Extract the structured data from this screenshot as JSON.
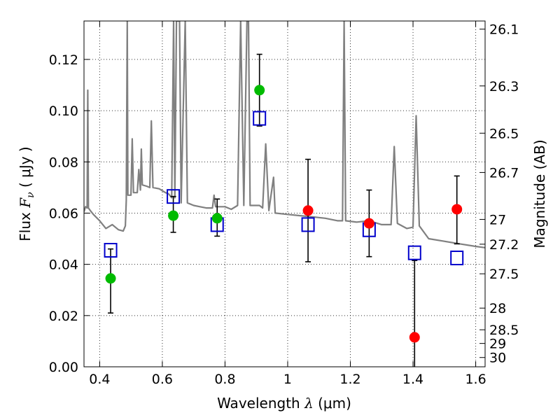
{
  "chart_data": {
    "type": "scatter",
    "xlabel": {
      "prefix": "Wavelength  ",
      "symbol": "λ",
      "unit": " (μm)"
    },
    "ylabel": {
      "prefix": "Flux  ",
      "symbol": "F",
      "subscript": "ν",
      "unit": "  ( μJy )"
    },
    "y2label": "Magnitude (AB)",
    "xlim": [
      0.35,
      1.63
    ],
    "ylim": [
      0.0,
      0.135
    ],
    "grid": true,
    "x_ticks": [
      0.4,
      0.6,
      0.8,
      1.0,
      1.2,
      1.4,
      1.6
    ],
    "x_tick_labels": [
      "0.4",
      "0.6",
      "0.8",
      "1",
      "1.2",
      "1.4",
      "1.6"
    ],
    "y_ticks": [
      0.0,
      0.02,
      0.04,
      0.06,
      0.08,
      0.1,
      0.12
    ],
    "y_tick_labels": [
      "0.00",
      "0.02",
      "0.04",
      "0.06",
      "0.08",
      "0.10",
      "0.12"
    ],
    "mag_ticks": [
      26.1,
      26.3,
      26.5,
      26.7,
      27,
      27.2,
      27.5,
      28,
      28.5,
      29,
      30
    ],
    "mag_tick_labels": [
      "26.1",
      "26.3",
      "26.5",
      "26.7",
      "27",
      "27.2",
      "27.5",
      "28",
      "28.5",
      "29",
      "30"
    ],
    "colors": {
      "spectrum": "#808080",
      "model": "#0000cc",
      "optical": "#00bb00",
      "nir": "#ff0000",
      "errorbar": "#000000",
      "grid": "#000000"
    },
    "series": [
      {
        "kind": "spectrum",
        "color": "#808080",
        "points": [
          [
            0.35,
            0.0605
          ],
          [
            0.355,
            0.0625
          ],
          [
            0.36,
            0.062
          ],
          [
            0.362,
            0.108
          ],
          [
            0.364,
            0.062
          ],
          [
            0.37,
            0.061
          ],
          [
            0.38,
            0.0595
          ],
          [
            0.4,
            0.057
          ],
          [
            0.42,
            0.054
          ],
          [
            0.44,
            0.0555
          ],
          [
            0.46,
            0.0535
          ],
          [
            0.475,
            0.053
          ],
          [
            0.482,
            0.055
          ],
          [
            0.485,
            0.065
          ],
          [
            0.488,
            0.135
          ],
          [
            0.49,
            0.067
          ],
          [
            0.5,
            0.067
          ],
          [
            0.504,
            0.089
          ],
          [
            0.508,
            0.068
          ],
          [
            0.52,
            0.068
          ],
          [
            0.525,
            0.077
          ],
          [
            0.53,
            0.069
          ],
          [
            0.533,
            0.085
          ],
          [
            0.536,
            0.071
          ],
          [
            0.55,
            0.0705
          ],
          [
            0.56,
            0.07
          ],
          [
            0.565,
            0.096
          ],
          [
            0.57,
            0.07
          ],
          [
            0.59,
            0.0695
          ],
          [
            0.61,
            0.068
          ],
          [
            0.62,
            0.0675
          ],
          [
            0.63,
            0.066
          ],
          [
            0.636,
            0.135
          ],
          [
            0.64,
            0.066
          ],
          [
            0.645,
            0.135
          ],
          [
            0.65,
            0.135
          ],
          [
            0.655,
            0.135
          ],
          [
            0.66,
            0.064
          ],
          [
            0.673,
            0.135
          ],
          [
            0.68,
            0.064
          ],
          [
            0.7,
            0.063
          ],
          [
            0.72,
            0.0625
          ],
          [
            0.74,
            0.062
          ],
          [
            0.76,
            0.062
          ],
          [
            0.765,
            0.067
          ],
          [
            0.77,
            0.0625
          ],
          [
            0.8,
            0.0625
          ],
          [
            0.82,
            0.0615
          ],
          [
            0.84,
            0.063
          ],
          [
            0.85,
            0.135
          ],
          [
            0.86,
            0.063
          ],
          [
            0.87,
            0.135
          ],
          [
            0.875,
            0.135
          ],
          [
            0.88,
            0.063
          ],
          [
            0.9,
            0.063
          ],
          [
            0.91,
            0.063
          ],
          [
            0.92,
            0.062
          ],
          [
            0.93,
            0.087
          ],
          [
            0.94,
            0.061
          ],
          [
            0.955,
            0.074
          ],
          [
            0.96,
            0.06
          ],
          [
            1.0,
            0.0595
          ],
          [
            1.04,
            0.059
          ],
          [
            1.08,
            0.0585
          ],
          [
            1.12,
            0.058
          ],
          [
            1.16,
            0.057
          ],
          [
            1.175,
            0.057
          ],
          [
            1.18,
            0.135
          ],
          [
            1.185,
            0.057
          ],
          [
            1.22,
            0.0565
          ],
          [
            1.26,
            0.057
          ],
          [
            1.3,
            0.0555
          ],
          [
            1.33,
            0.0555
          ],
          [
            1.34,
            0.086
          ],
          [
            1.35,
            0.056
          ],
          [
            1.38,
            0.054
          ],
          [
            1.4,
            0.0545
          ],
          [
            1.41,
            0.098
          ],
          [
            1.42,
            0.055
          ],
          [
            1.45,
            0.05
          ],
          [
            1.5,
            0.049
          ],
          [
            1.55,
            0.048
          ],
          [
            1.6,
            0.047
          ],
          [
            1.63,
            0.0465
          ]
        ]
      },
      {
        "kind": "model-squares",
        "color": "#0000cc",
        "points": [
          [
            0.435,
            0.0455
          ],
          [
            0.635,
            0.0665
          ],
          [
            0.775,
            0.0555
          ],
          [
            0.91,
            0.097
          ],
          [
            1.065,
            0.0555
          ],
          [
            1.26,
            0.0535
          ],
          [
            1.405,
            0.0445
          ],
          [
            1.54,
            0.0425
          ]
        ]
      },
      {
        "kind": "observed-optical",
        "color": "#00bb00",
        "points": [
          [
            0.435,
            0.0345
          ],
          [
            0.635,
            0.059
          ],
          [
            0.775,
            0.058
          ],
          [
            0.91,
            0.108
          ]
        ],
        "err_low": [
          0.0135,
          0.0065,
          0.007,
          0.014
        ],
        "err_high": [
          0.0115,
          0.0075,
          0.0075,
          0.014
        ]
      },
      {
        "kind": "observed-nir",
        "color": "#ff0000",
        "points": [
          [
            1.065,
            0.061
          ],
          [
            1.26,
            0.056
          ],
          [
            1.405,
            0.0115
          ],
          [
            1.54,
            0.0615
          ]
        ],
        "err_low": [
          0.02,
          0.013,
          0.0115,
          0.0135
        ],
        "err_high": [
          0.02,
          0.013,
          0.03,
          0.013
        ]
      }
    ]
  }
}
